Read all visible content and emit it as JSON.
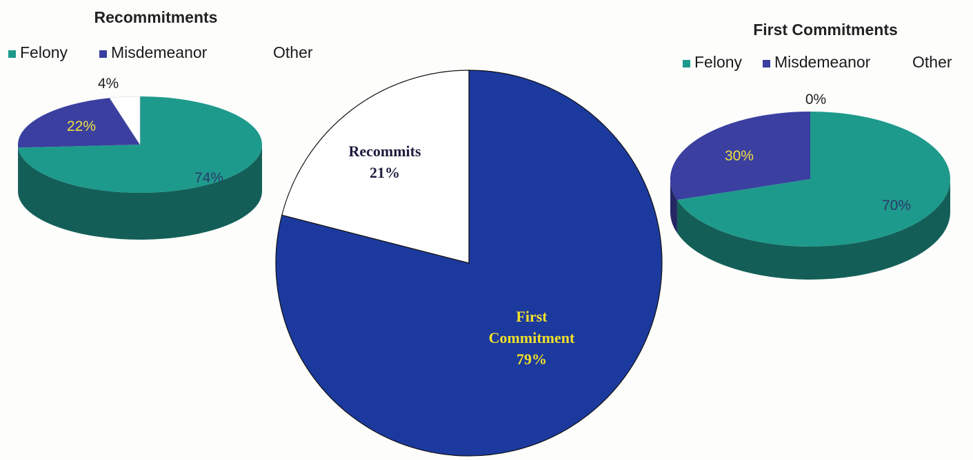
{
  "chart_data": [
    {
      "type": "pie",
      "title": "Recommitments",
      "categories": [
        "Felony",
        "Misdemeanor",
        "Other"
      ],
      "values": [
        74,
        22,
        4
      ],
      "labels": [
        "74%",
        "22%",
        "4%"
      ],
      "legend": {
        "placement": "top-left",
        "entries": [
          "Felony",
          "Misdemeanor",
          "Other"
        ]
      },
      "colors": [
        "#1e9a8c",
        "#3a3fa0",
        "#ffffff"
      ],
      "style": "3d"
    },
    {
      "type": "pie",
      "title": "",
      "categories": [
        "Recommits",
        "First Commitment"
      ],
      "values": [
        21,
        79
      ],
      "labels": [
        "21%",
        "79%"
      ],
      "colors": [
        "#ffffff",
        "#1c3a9e"
      ],
      "style": "2d"
    },
    {
      "type": "pie",
      "title": "First Commitments",
      "categories": [
        "Felony",
        "Misdemeanor",
        "Other"
      ],
      "values": [
        70,
        30,
        0
      ],
      "labels": [
        "70%",
        "30%",
        "0%"
      ],
      "legend": {
        "placement": "top-right",
        "entries": [
          "Felony",
          "Misdemeanor",
          "Other"
        ]
      },
      "colors": [
        "#1e9a8c",
        "#3a3fa0",
        "#ffffff"
      ],
      "style": "3d"
    }
  ]
}
